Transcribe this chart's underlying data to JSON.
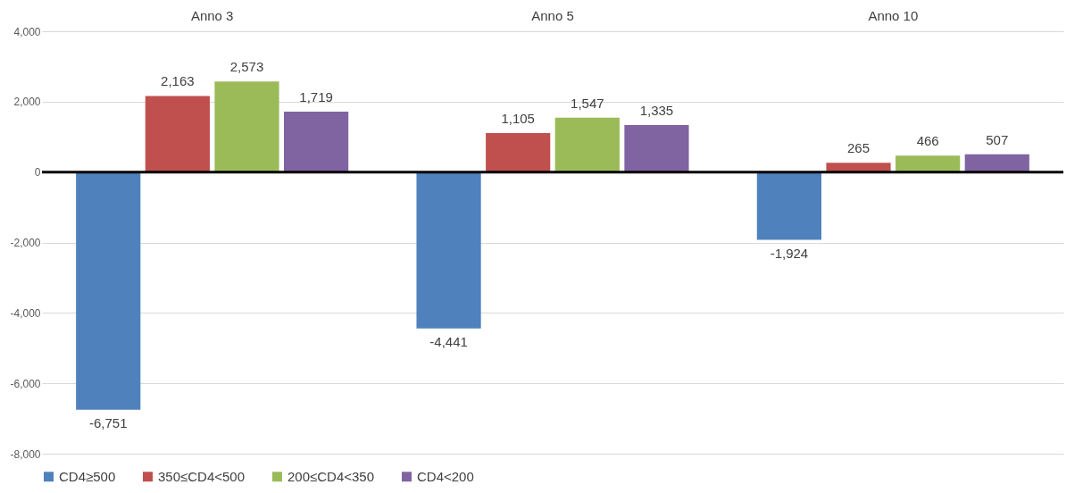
{
  "chart_data": {
    "type": "bar",
    "categories": [
      "Anno 3",
      "Anno 5",
      "Anno 10"
    ],
    "series": [
      {
        "name": "CD4≥500",
        "color": "#4f81bd",
        "values": [
          -6751,
          -4441,
          -1924
        ],
        "value_labels": [
          "-6,751",
          "-4,441",
          "-1,924"
        ]
      },
      {
        "name": "350≤CD4<500",
        "color": "#c0504d",
        "values": [
          2163,
          1105,
          265
        ],
        "value_labels": [
          "2,163",
          "1,105",
          "265"
        ]
      },
      {
        "name": "200≤CD4<350",
        "color": "#9bbb59",
        "values": [
          2573,
          1547,
          466
        ],
        "value_labels": [
          "2,573",
          "1,547",
          "466"
        ]
      },
      {
        "name": "CD4<200",
        "color": "#8064a2",
        "values": [
          1719,
          1335,
          507
        ],
        "value_labels": [
          "1,719",
          "1,335",
          "507"
        ]
      }
    ],
    "ylim": [
      -8000,
      4000
    ],
    "yticks": [
      {
        "value": -8000,
        "label": "-8,000"
      },
      {
        "value": -6000,
        "label": "-6,000"
      },
      {
        "value": -4000,
        "label": "-4,000"
      },
      {
        "value": -2000,
        "label": "-2,000"
      },
      0,
      {
        "value": 2000,
        "label": "2,000"
      },
      {
        "value": 4000,
        "label": "4,000"
      }
    ],
    "grid": "y",
    "legend": "bottom",
    "ref_lines": [
      {
        "axis": "y",
        "value": 0,
        "color": "#000000"
      }
    ]
  }
}
